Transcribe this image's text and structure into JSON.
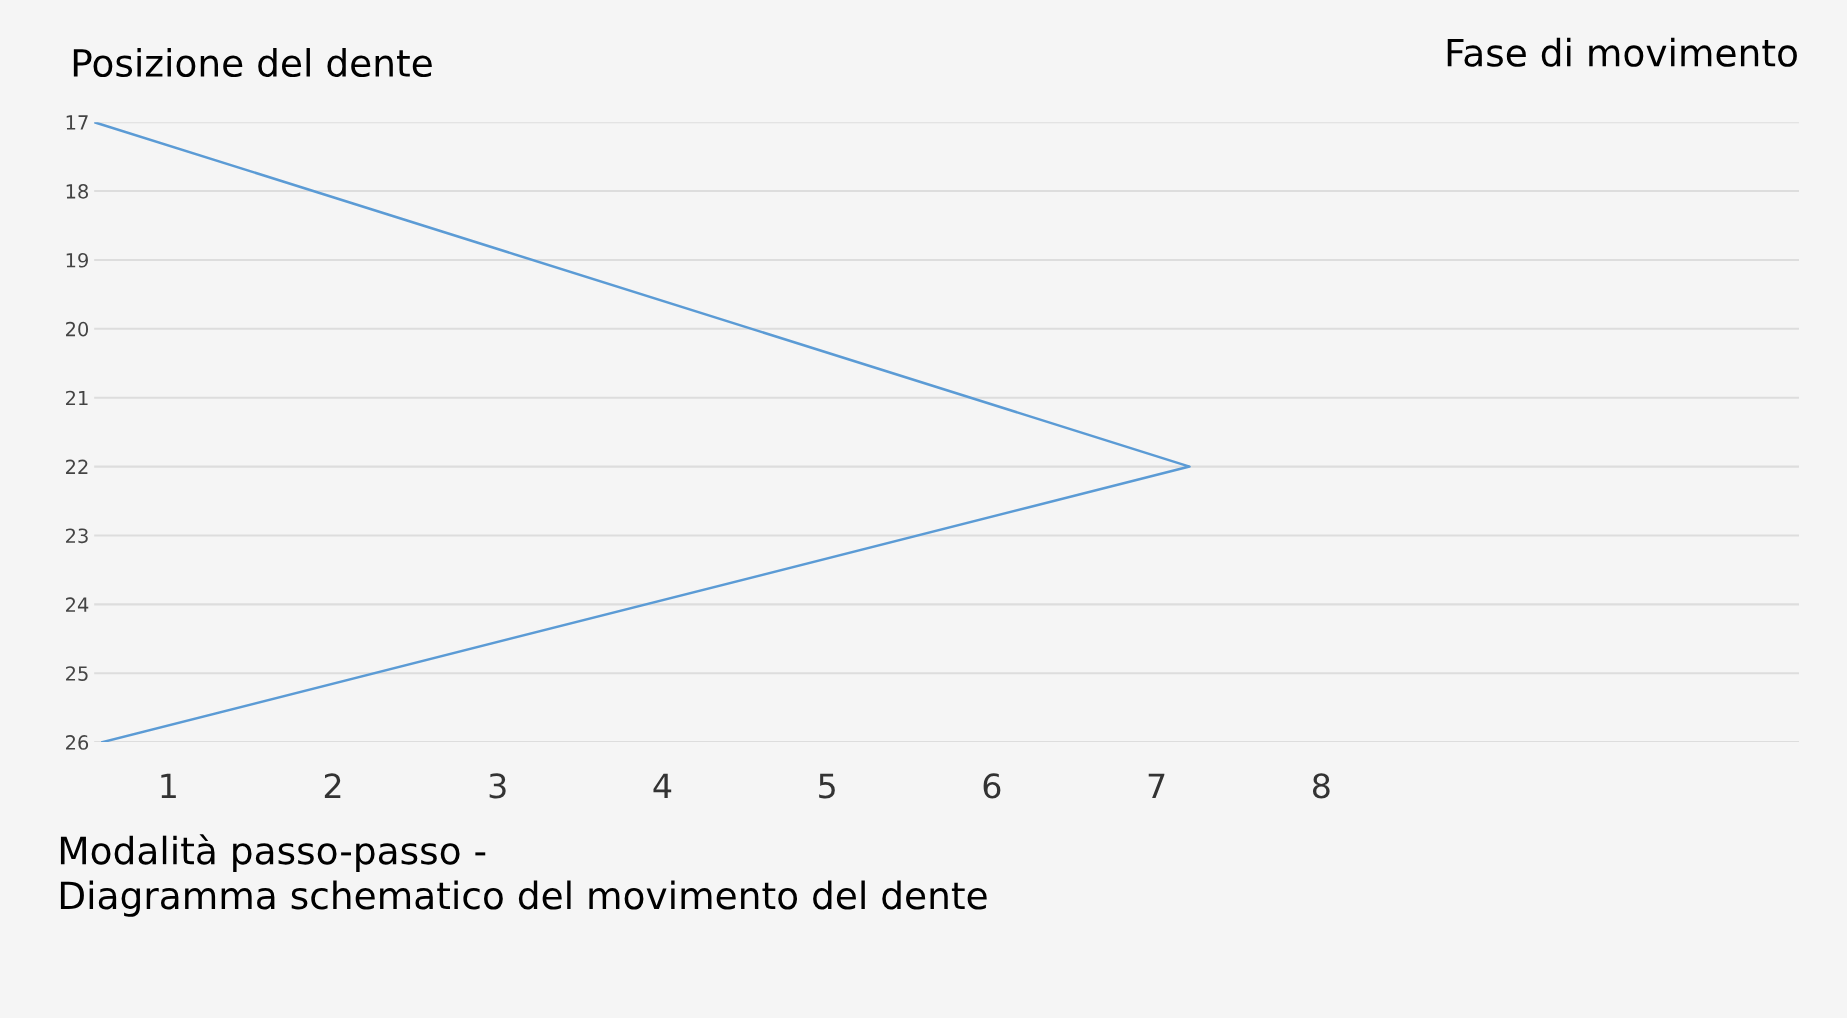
{
  "chart_data": {
    "type": "line",
    "ylabel": "Posizione del dente",
    "xlabel": "Fase di movimento",
    "annotations": [
      "Modalità passo-passo -\nDiagramma schematico del movimento del dente"
    ],
    "series": [
      {
        "color": "#5b9bd5",
        "x": [
          0.55,
          7.2,
          0.6
        ],
        "values": [
          17,
          22,
          26
        ]
      }
    ],
    "xlim": [
      0.55,
      10.9
    ],
    "xticks": [
      1,
      2,
      3,
      4,
      5,
      6,
      7,
      8
    ],
    "ylim": [
      26,
      17
    ],
    "yticks": [
      17,
      18,
      19,
      20,
      21,
      22,
      23,
      24,
      25,
      26
    ],
    "grid": "y",
    "line_style": "solid",
    "marker": "none"
  }
}
